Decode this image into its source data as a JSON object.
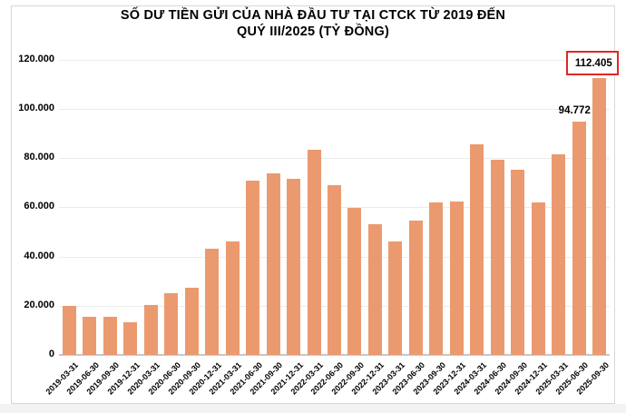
{
  "title": {
    "line1": "SỐ DƯ TIỀN GỬI CỦA NHÀ ĐẦU TƯ TẠI CTCK TỪ 2019 ĐẾN",
    "line2": "QUÝ III/2025 (TỶ ĐỒNG)"
  },
  "chart_data": {
    "type": "bar",
    "title": "SỐ DƯ TIỀN GỬI CỦA NHÀ ĐẦU TƯ TẠI CTCK TỪ 2019 ĐẾN QUÝ III/2025 (TỶ ĐỒNG)",
    "unit": "tỷ đồng",
    "xlabel": "",
    "ylabel": "",
    "ylim": [
      0,
      120000
    ],
    "grid": "horizontal",
    "legend": "none",
    "categories": [
      "2019-03-31",
      "2019-06-30",
      "2019-09-30",
      "2019-12-31",
      "2020-03-31",
      "2020-06-30",
      "2020-09-30",
      "2020-12-31",
      "2021-03-31",
      "2021-06-30",
      "2021-09-30",
      "2021-12-31",
      "2022-03-31",
      "2022-06-30",
      "2022-09-30",
      "2022-12-31",
      "2023-03-31",
      "2023-06-30",
      "2023-09-30",
      "2023-12-31",
      "2024-03-31",
      "2024-06-30",
      "2024-09-30",
      "2024-12-31",
      "2025-03-31",
      "2025-06-30",
      "2025-09-30"
    ],
    "values": [
      20000,
      15400,
      15600,
      13400,
      20200,
      25200,
      27200,
      43300,
      46100,
      70700,
      73700,
      71700,
      83300,
      68900,
      59900,
      53000,
      46200,
      54600,
      61900,
      62300,
      85600,
      79300,
      75100,
      62100,
      81500,
      94772,
      112405
    ],
    "y_ticks": [
      {
        "value": 120000,
        "label": "120.000"
      },
      {
        "value": 100000,
        "label": "100.000"
      },
      {
        "value": 80000,
        "label": "80.000"
      },
      {
        "value": 60000,
        "label": "60.000"
      },
      {
        "value": 40000,
        "label": "40.000"
      },
      {
        "value": 20000,
        "label": "20.000"
      },
      {
        "value": 0,
        "label": "0"
      }
    ],
    "annotations": [
      {
        "category": "2025-06-30",
        "text": "94.772",
        "boxed": false
      },
      {
        "category": "2025-09-30",
        "text": "112.405",
        "boxed": true
      }
    ]
  },
  "colors": {
    "bar": "#EB9A70",
    "highlight_box_border": "#DF2823",
    "gridline": "#EBEBEB",
    "axis_line": "#C8C8C8",
    "frame_border": "#D8D8D8",
    "text": "#000000",
    "background": "#FFFFFF"
  }
}
